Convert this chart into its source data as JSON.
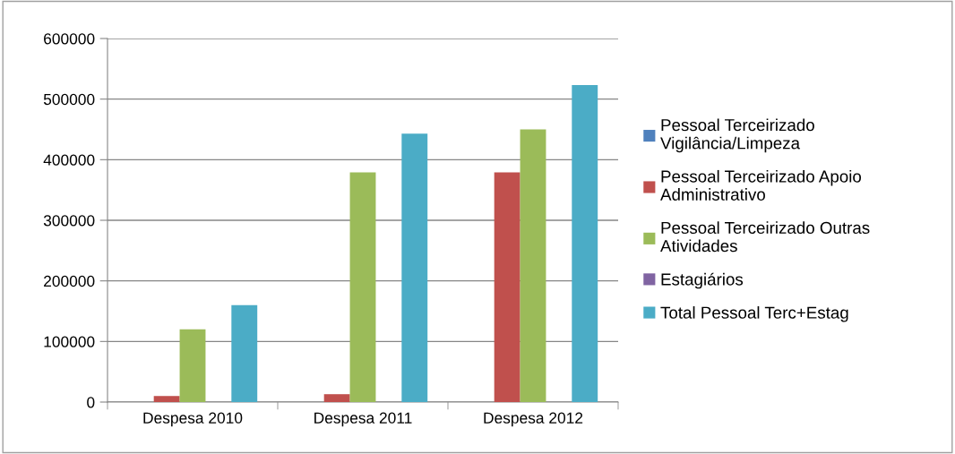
{
  "chart_data": {
    "type": "bar",
    "categories": [
      "Despesa 2010",
      "Despesa 2011",
      "Despesa 2012"
    ],
    "series": [
      {
        "name": "Pessoal Terceirizado Vigilância/Limpeza",
        "color": "#4f81bd",
        "values": [
          0,
          0,
          0
        ]
      },
      {
        "name": "Pessoal Terceirizado Apoio Administrativo",
        "color": "#c0504d",
        "values": [
          10000,
          13000,
          379000
        ]
      },
      {
        "name": "Pessoal Terceirizado Outras Atividades",
        "color": "#9bbb59",
        "values": [
          120000,
          379000,
          450000
        ]
      },
      {
        "name": "Estagiários",
        "color": "#8064a2",
        "values": [
          0,
          0,
          0
        ]
      },
      {
        "name": "Total Pessoal Terc+Estag",
        "color": "#4bacc6",
        "values": [
          160000,
          443000,
          523000
        ]
      }
    ],
    "ylim": [
      0,
      600000
    ],
    "yticks": [
      0,
      100000,
      200000,
      300000,
      400000,
      500000,
      600000
    ],
    "grid": "y",
    "legend": "right"
  }
}
